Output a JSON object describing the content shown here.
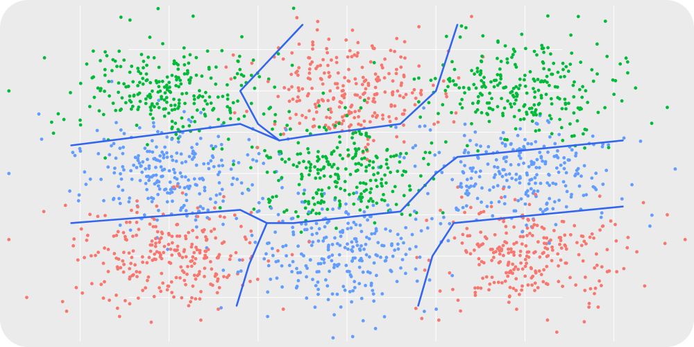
{
  "chart_data": {
    "type": "scatter",
    "title": "",
    "xlabel": "",
    "ylabel": "",
    "axes_shown": false,
    "grid": true,
    "legend": "none",
    "xlim": [
      -1.95,
      1.95
    ],
    "ylim": [
      -1.05,
      1.05
    ],
    "grid_x": [
      -1.5,
      -1.0,
      -0.5,
      0.0,
      0.5,
      1.0,
      1.5
    ],
    "grid_y": [
      -0.75,
      -0.5,
      -0.25,
      0.0,
      0.25,
      0.5,
      0.75
    ],
    "colors": {
      "red": "#f8766d",
      "green": "#00ba38",
      "blue": "#619cff",
      "boundary": "#3366ee",
      "panel": "#ebebeb",
      "gridline": "#ffffff"
    },
    "series": [
      {
        "color": "red",
        "clusters": [
          {
            "cx": 0.0,
            "cy": 0.5,
            "sx": 0.26,
            "sy": 0.16,
            "n": 260
          },
          {
            "cx": -1.0,
            "cy": -0.5,
            "sx": 0.27,
            "sy": 0.16,
            "n": 260
          },
          {
            "cx": 1.0,
            "cy": -0.5,
            "sx": 0.27,
            "sy": 0.16,
            "n": 260
          }
        ]
      },
      {
        "color": "green",
        "clusters": [
          {
            "cx": -1.0,
            "cy": 0.5,
            "sx": 0.27,
            "sy": 0.16,
            "n": 260
          },
          {
            "cx": 1.0,
            "cy": 0.5,
            "sx": 0.27,
            "sy": 0.16,
            "n": 260
          },
          {
            "cx": 0.0,
            "cy": 0.0,
            "sx": 0.26,
            "sy": 0.16,
            "n": 260
          }
        ]
      },
      {
        "color": "blue",
        "clusters": [
          {
            "cx": -1.0,
            "cy": 0.0,
            "sx": 0.27,
            "sy": 0.16,
            "n": 260
          },
          {
            "cx": 1.0,
            "cy": 0.0,
            "sx": 0.27,
            "sy": 0.16,
            "n": 260
          },
          {
            "cx": 0.0,
            "cy": -0.5,
            "sx": 0.26,
            "sy": 0.16,
            "n": 260
          }
        ]
      }
    ],
    "outliers": [
      {
        "x": -1.9,
        "y": 0.5,
        "color": "green"
      },
      {
        "x": -1.7,
        "y": 0.7,
        "color": "green"
      },
      {
        "x": -1.9,
        "y": 0.0,
        "color": "blue"
      },
      {
        "x": -1.9,
        "y": -0.4,
        "color": "red"
      },
      {
        "x": -1.8,
        "y": -0.75,
        "color": "red"
      },
      {
        "x": 1.8,
        "y": 0.4,
        "color": "green"
      },
      {
        "x": 1.9,
        "y": -0.4,
        "color": "red"
      },
      {
        "x": 1.8,
        "y": -0.25,
        "color": "red"
      },
      {
        "x": 0.7,
        "y": 0.95,
        "color": "red"
      },
      {
        "x": -0.3,
        "y": 1.0,
        "color": "green"
      },
      {
        "x": 1.3,
        "y": 0.95,
        "color": "green"
      },
      {
        "x": 0.7,
        "y": -1.05,
        "color": "red"
      },
      {
        "x": -1.1,
        "y": -0.9,
        "color": "red"
      }
    ],
    "boundaries": [
      [
        [
          -1.55,
          0.17
        ],
        [
          -0.6,
          0.3
        ],
        [
          -0.38,
          0.2
        ]
      ],
      [
        [
          -0.38,
          0.2
        ],
        [
          -0.5,
          0.3
        ],
        [
          -0.6,
          0.5
        ],
        [
          -0.25,
          0.9
        ]
      ],
      [
        [
          -0.38,
          0.2
        ],
        [
          -0.2,
          0.23
        ],
        [
          0.3,
          0.3
        ],
        [
          0.5,
          0.5
        ],
        [
          0.62,
          0.9
        ]
      ],
      [
        [
          -1.55,
          -0.3
        ],
        [
          -0.6,
          -0.22
        ],
        [
          -0.45,
          -0.3
        ]
      ],
      [
        [
          -0.45,
          -0.3
        ],
        [
          -0.55,
          -0.55
        ],
        [
          -0.62,
          -0.8
        ]
      ],
      [
        [
          -0.45,
          -0.3
        ],
        [
          -0.3,
          -0.3
        ],
        [
          0.3,
          -0.23
        ],
        [
          0.5,
          -0.0
        ],
        [
          0.62,
          0.1
        ],
        [
          1.55,
          0.2
        ]
      ],
      [
        [
          0.4,
          -0.8
        ],
        [
          0.48,
          -0.5
        ],
        [
          0.6,
          -0.3
        ],
        [
          1.55,
          -0.2
        ]
      ]
    ]
  }
}
